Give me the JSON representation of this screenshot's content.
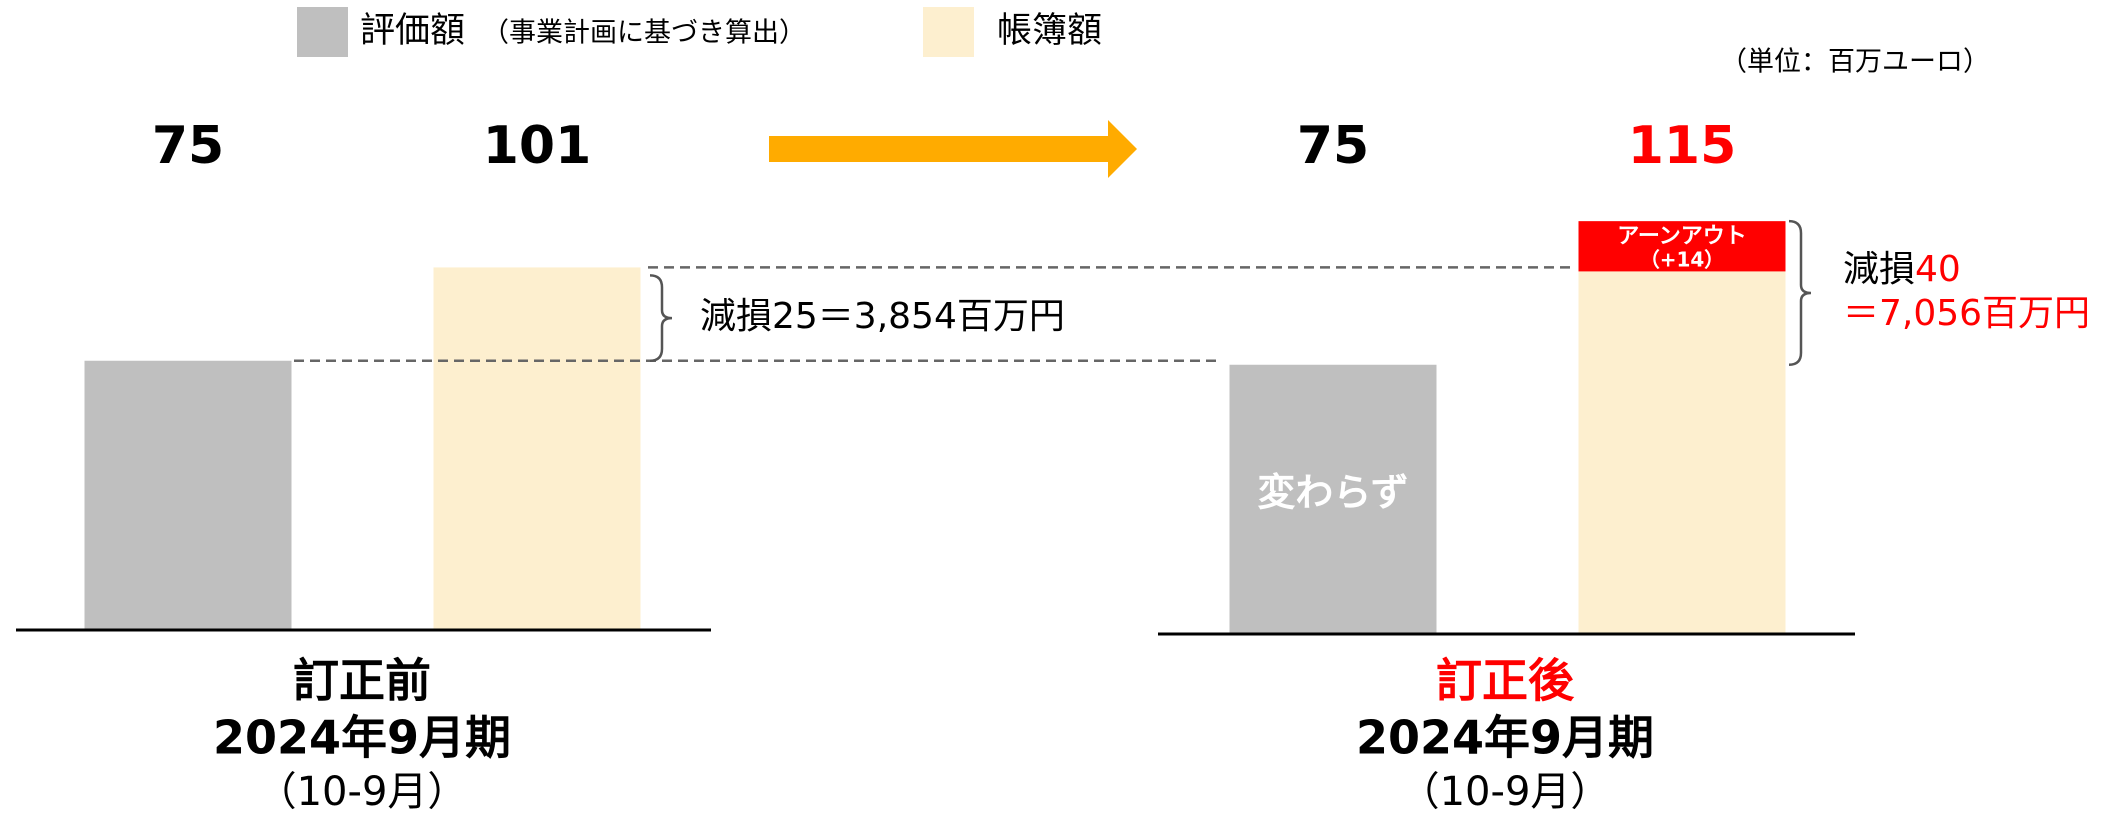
{
  "chart_data": {
    "type": "bar",
    "unit": "（単位：百万ユーロ）",
    "legend_note": "（事業計画に基づき算出）",
    "series": [
      {
        "name": "評価額",
        "color": "#bfbfbf",
        "values": [
          75,
          75
        ]
      },
      {
        "name": "帳簿額",
        "color": "#fdefcf",
        "values": [
          101,
          101
        ]
      },
      {
        "name": "アーンアウト",
        "color": "#ff0000",
        "values": [
          null,
          14
        ],
        "value_labels": [
          null,
          "（+14）"
        ]
      }
    ],
    "totals": [
      101,
      115
    ],
    "total_colors": [
      "#000000",
      "#ff0000"
    ],
    "bar_note": "変わらず",
    "groups": [
      {
        "title": "訂正前",
        "period": "2024年9月期",
        "months": "（10-9月）",
        "title_color": "#000000"
      },
      {
        "title": "訂正後",
        "period": "2024年9月期",
        "months": "（10-9月）",
        "title_color": "#ff0000"
      }
    ],
    "annotations": [
      {
        "text": "減損25＝3,854百万円"
      },
      {
        "label": "減損",
        "amount": "40",
        "text": "＝7,056百万円"
      }
    ]
  }
}
